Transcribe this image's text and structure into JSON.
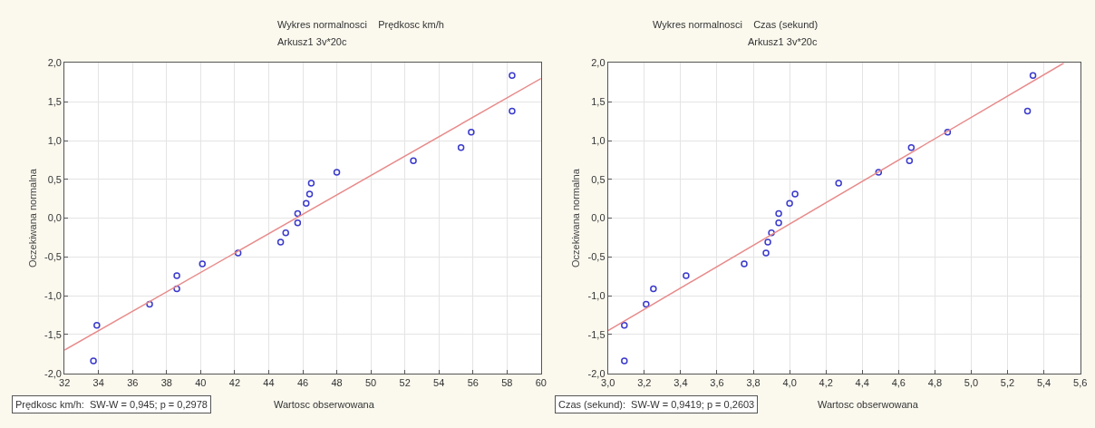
{
  "chart_data": [
    {
      "type": "scatter",
      "title": "Wykres normalnosci    Prędkosc km/h",
      "subtitle": "Arkusz1 3v*20c",
      "xlabel": "Wartosc obserwowana",
      "ylabel": "Oczekiwana normalna",
      "annotations": [
        "Prędkosc km/h:  SW-W = 0,945; p = 0,2978"
      ],
      "xlim": [
        32,
        60
      ],
      "xticks": [
        32,
        34,
        36,
        38,
        40,
        42,
        44,
        46,
        48,
        50,
        52,
        54,
        56,
        58,
        60
      ],
      "ylim": [
        -2.0,
        2.0
      ],
      "yticks": [
        {
          "value": -2.0,
          "label": "-2,0"
        },
        {
          "value": -1.5,
          "label": "-1,5"
        },
        {
          "value": -1.0,
          "label": "-1,0"
        },
        {
          "value": -0.5,
          "label": "-0,5"
        },
        {
          "value": 0.0,
          "label": "0,0"
        },
        {
          "value": 0.5,
          "label": "0,5"
        },
        {
          "value": 1.0,
          "label": "1,0"
        },
        {
          "value": 1.5,
          "label": "1,5"
        },
        {
          "value": 2.0,
          "label": "2,0"
        }
      ],
      "grid": true,
      "marker": "circle",
      "series": [
        {
          "color": "#3a3acc",
          "x": [
            58.3,
            58.3,
            55.9,
            55.3,
            52.5,
            48.0,
            46.5,
            46.4,
            46.2,
            45.7,
            45.7,
            45.0,
            44.7,
            42.2,
            40.1,
            38.6,
            38.6,
            37.0,
            33.9,
            33.7
          ],
          "values": [
            1.84,
            1.38,
            1.11,
            0.91,
            0.74,
            0.59,
            0.45,
            0.31,
            0.19,
            0.06,
            -0.06,
            -0.19,
            -0.31,
            -0.45,
            -0.59,
            -0.74,
            -0.91,
            -1.11,
            -1.38,
            -1.84
          ]
        },
        {
          "type": "line",
          "marker": "none",
          "color": "#e88a8a",
          "x": [
            32,
            60
          ],
          "values": [
            -1.7,
            1.8
          ]
        }
      ]
    },
    {
      "type": "scatter",
      "title": "Wykres normalnosci    Czas (sekund)",
      "subtitle": "Arkusz1 3v*20c",
      "xlabel": "Wartosc obserwowana",
      "ylabel": "Oczekiwana normalna",
      "annotations": [
        "Czas (sekund):  SW-W = 0,9419; p = 0,2603"
      ],
      "xlim": [
        3.0,
        5.6
      ],
      "xticks": [
        {
          "value": 3.0,
          "label": "3,0"
        },
        {
          "value": 3.2,
          "label": "3,2"
        },
        {
          "value": 3.4,
          "label": "3,4"
        },
        {
          "value": 3.6,
          "label": "3,6"
        },
        {
          "value": 3.8,
          "label": "3,8"
        },
        {
          "value": 4.0,
          "label": "4,0"
        },
        {
          "value": 4.2,
          "label": "4,2"
        },
        {
          "value": 4.4,
          "label": "4,4"
        },
        {
          "value": 4.6,
          "label": "4,6"
        },
        {
          "value": 4.8,
          "label": "4,8"
        },
        {
          "value": 5.0,
          "label": "5,0"
        },
        {
          "value": 5.2,
          "label": "5,2"
        },
        {
          "value": 5.4,
          "label": "5,4"
        },
        {
          "value": 5.6,
          "label": "5,6"
        }
      ],
      "ylim": [
        -2.0,
        2.0
      ],
      "yticks": [
        {
          "value": -2.0,
          "label": "-2,0"
        },
        {
          "value": -1.5,
          "label": "-1,5"
        },
        {
          "value": -1.0,
          "label": "-1,0"
        },
        {
          "value": -0.5,
          "label": "-0,5"
        },
        {
          "value": 0.0,
          "label": "0,0"
        },
        {
          "value": 0.5,
          "label": "0,5"
        },
        {
          "value": 1.0,
          "label": "1,0"
        },
        {
          "value": 1.5,
          "label": "1,5"
        },
        {
          "value": 2.0,
          "label": "2,0"
        }
      ],
      "grid": true,
      "marker": "circle",
      "series": [
        {
          "color": "#3a3acc",
          "x": [
            5.34,
            5.31,
            4.87,
            4.67,
            4.66,
            4.49,
            4.27,
            4.03,
            4.0,
            3.94,
            3.94,
            3.9,
            3.88,
            3.87,
            3.75,
            3.43,
            3.25,
            3.21,
            3.09,
            3.09
          ],
          "values": [
            1.84,
            1.38,
            1.11,
            0.91,
            0.74,
            0.59,
            0.45,
            0.31,
            0.19,
            0.06,
            -0.06,
            -0.19,
            -0.31,
            -0.45,
            -0.59,
            -0.74,
            -0.91,
            -1.11,
            -1.38,
            -1.84
          ]
        },
        {
          "type": "line",
          "marker": "none",
          "color": "#e88a8a",
          "x": [
            3.0,
            5.51
          ],
          "values": [
            -1.45,
            2.0
          ]
        }
      ]
    }
  ]
}
